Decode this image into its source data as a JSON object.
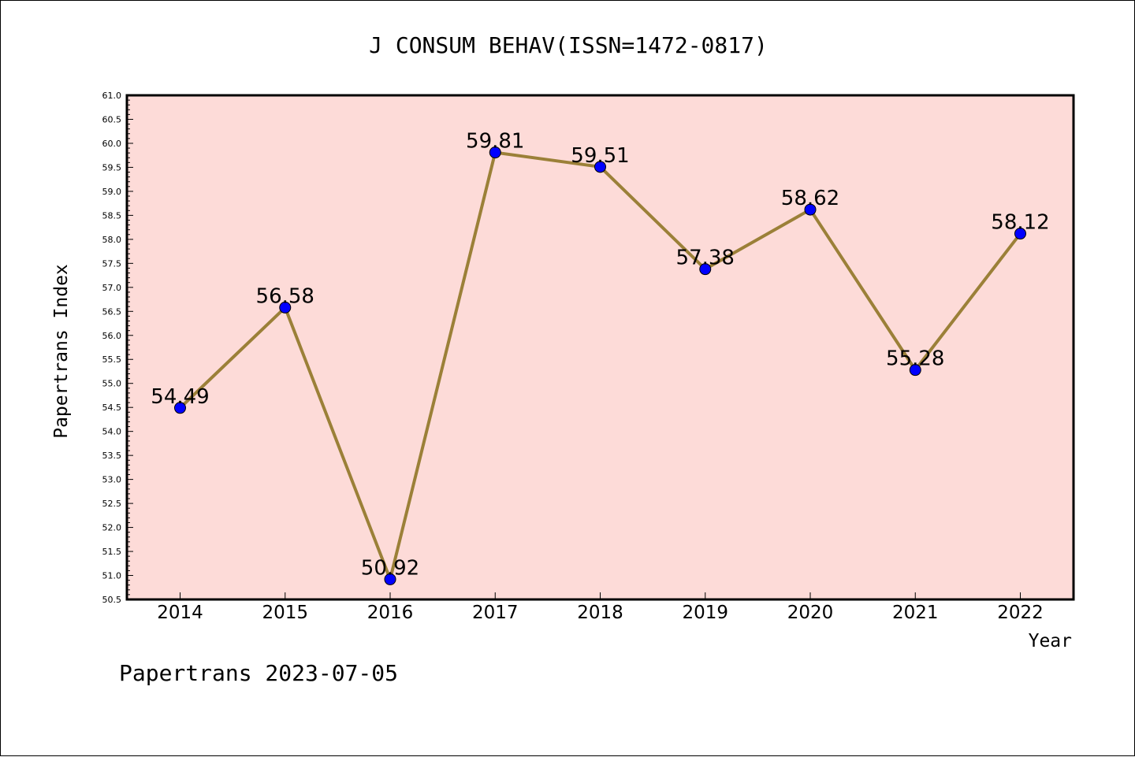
{
  "chart_data": {
    "type": "line",
    "title": "J CONSUM BEHAV(ISSN=1472-0817)",
    "xlabel": "Year",
    "ylabel": "Papertrans Index",
    "categories": [
      "2014",
      "2015",
      "2016",
      "2017",
      "2018",
      "2019",
      "2020",
      "2021",
      "2022"
    ],
    "series": [
      {
        "values": [
          54.49,
          56.58,
          50.92,
          59.81,
          59.51,
          57.38,
          58.62,
          55.28,
          58.12
        ],
        "data_labels": [
          "54.49",
          "56.58",
          "50.92",
          "59.81",
          "59.51",
          "57.38",
          "58.62",
          "55.28",
          "58.12"
        ]
      }
    ],
    "ylim": [
      50.5,
      61.0
    ],
    "ytick_labels": [
      "50.5",
      "51.0",
      "51.5",
      "52.0",
      "52.5",
      "53.0",
      "53.5",
      "54.0",
      "54.5",
      "55.0",
      "55.5",
      "56.0",
      "56.5",
      "57.0",
      "57.5",
      "58.0",
      "58.5",
      "59.0",
      "59.5",
      "60.0",
      "60.5",
      "61.0"
    ],
    "grid": false,
    "colors": {
      "plot_background": "#fddbd8",
      "line": "#9b8038",
      "marker": "#0000ff"
    }
  },
  "footer": "Papertrans 2023-07-05"
}
